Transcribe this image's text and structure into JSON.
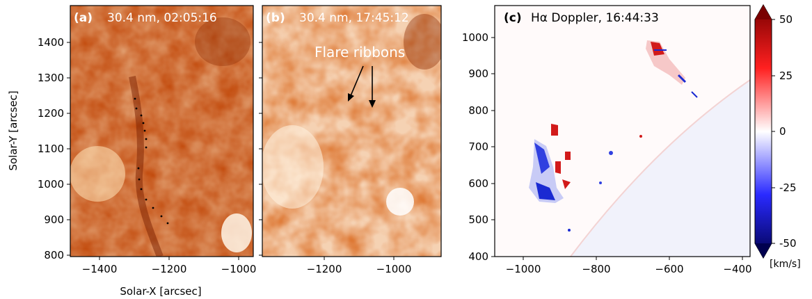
{
  "panels": {
    "a": {
      "label": "(a)",
      "title": "30.4 nm, 02:05:16",
      "x_ticks": [
        "−1400",
        "−1200",
        "−1000"
      ],
      "y_ticks": [
        "1400",
        "1300",
        "1200",
        "1100",
        "1000",
        "900",
        "800"
      ],
      "xlabel": "Solar-X [arcsec]",
      "ylabel": "Solar-Y [arcsec]"
    },
    "b": {
      "label": "(b)",
      "title": "30.4 nm, 17:45:12",
      "annotation": "Flare ribbons",
      "x_ticks": [
        "−1200",
        "−1000"
      ]
    },
    "c": {
      "label": "(c)",
      "title": "Hα Doppler, 16:44:33",
      "x_ticks": [
        "−1000",
        "−800",
        "−600",
        "−400"
      ],
      "y_ticks": [
        "1000",
        "900",
        "800",
        "700",
        "600",
        "500",
        "400"
      ]
    }
  },
  "colorbar": {
    "ticks": [
      "50",
      "25",
      "0",
      "-25",
      "-50"
    ],
    "unit": "[km/s]",
    "colors": {
      "high": "#7a0000",
      "mid": "#ffffff",
      "low": "#00004f"
    }
  },
  "colors": {
    "sdo_dark": "#a83200",
    "sdo_light": "#fff2dc",
    "redshift": "#d21a1a",
    "blueshift": "#1a2ad2"
  }
}
